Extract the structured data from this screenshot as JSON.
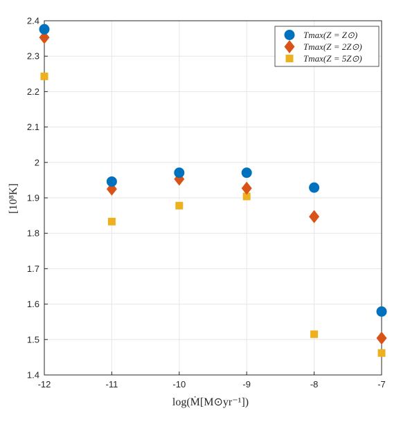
{
  "chart_data": {
    "type": "scatter",
    "xlabel": "log(Ṁ[M⊙yr⁻¹])",
    "ylabel": "[10⁸K]",
    "xlim": [
      -12,
      -7
    ],
    "ylim": [
      1.4,
      2.4
    ],
    "xticks": [
      "-12",
      "-11",
      "-10",
      "-9",
      "-8",
      "-7"
    ],
    "yticks": [
      "1.4",
      "1.5",
      "1.6",
      "1.7",
      "1.8",
      "1.9",
      "2",
      "2.1",
      "2.2",
      "2.3",
      "2.4"
    ],
    "grid": true,
    "legend_position": "top-right",
    "x": [
      -12,
      -11,
      -10,
      -9,
      -8,
      -7
    ],
    "series": [
      {
        "name": "Tmax(Z = Z⊙)",
        "marker": "circle",
        "color": "#0072BD",
        "values": [
          2.376,
          1.946,
          1.971,
          1.971,
          1.929,
          1.579
        ]
      },
      {
        "name": "Tmax(Z = 2Z⊙)",
        "marker": "diamond",
        "color": "#D95319",
        "values": [
          2.353,
          1.925,
          1.953,
          1.927,
          1.847,
          1.504
        ]
      },
      {
        "name": "Tmax(Z = 5Z⊙)",
        "marker": "square",
        "color": "#EDB120",
        "values": [
          2.243,
          1.833,
          1.878,
          1.904,
          1.515,
          1.462
        ]
      }
    ]
  }
}
